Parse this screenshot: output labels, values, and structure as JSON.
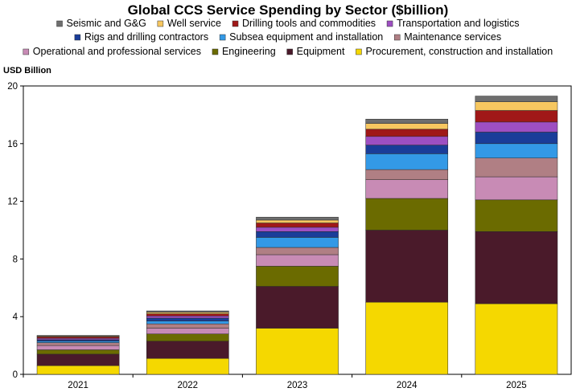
{
  "chart_data": {
    "type": "bar",
    "stacked": true,
    "title": "Global CCS Service Spending by Sector ($billion)",
    "ylabel": "USD Billion",
    "xlabel": "",
    "ylim": [
      0,
      20
    ],
    "yticks": [
      0,
      4,
      8,
      12,
      16,
      20
    ],
    "categories": [
      "2021",
      "2022",
      "2023",
      "2024",
      "2025"
    ],
    "grid": false,
    "legend_position": "top",
    "series": [
      {
        "name": "Procurement, construction and installation",
        "color": "#F5D800",
        "values": [
          0.6,
          1.1,
          3.2,
          5.0,
          4.9
        ]
      },
      {
        "name": "Equipment",
        "color": "#4A1A2A",
        "values": [
          0.8,
          1.2,
          2.9,
          5.0,
          5.0
        ]
      },
      {
        "name": "Engineering",
        "color": "#6B6B00",
        "values": [
          0.3,
          0.5,
          1.4,
          2.2,
          2.2
        ]
      },
      {
        "name": "Operational and professional services",
        "color": "#C88BB5",
        "values": [
          0.3,
          0.4,
          0.8,
          1.3,
          1.6
        ]
      },
      {
        "name": "Maintenance services",
        "color": "#B07F84",
        "values": [
          0.2,
          0.3,
          0.5,
          0.7,
          1.3
        ]
      },
      {
        "name": "Subsea equipment and installation",
        "color": "#3399E6",
        "values": [
          0.1,
          0.2,
          0.7,
          1.1,
          1.0
        ]
      },
      {
        "name": "Rigs and drilling contractors",
        "color": "#1A3D99",
        "values": [
          0.1,
          0.2,
          0.4,
          0.6,
          0.8
        ]
      },
      {
        "name": "Transportation and logistics",
        "color": "#9E4FC2",
        "values": [
          0.1,
          0.15,
          0.3,
          0.6,
          0.7
        ]
      },
      {
        "name": "Drilling tools and commodities",
        "color": "#A01818",
        "values": [
          0.1,
          0.15,
          0.3,
          0.5,
          0.8
        ]
      },
      {
        "name": "Well service",
        "color": "#F7C760",
        "values": [
          0.05,
          0.1,
          0.2,
          0.4,
          0.6
        ]
      },
      {
        "name": "Seismic and G&G",
        "color": "#6E6E6E",
        "values": [
          0.05,
          0.1,
          0.2,
          0.3,
          0.4
        ]
      }
    ]
  },
  "legend_rows": [
    [
      10,
      9,
      8,
      7
    ],
    [
      6,
      5,
      4
    ],
    [
      3,
      2,
      1,
      0
    ]
  ]
}
